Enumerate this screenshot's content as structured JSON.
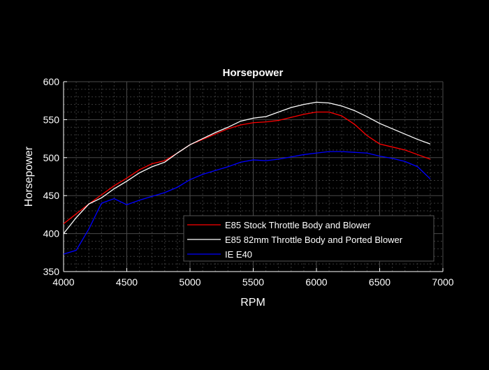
{
  "chart_data": {
    "type": "line",
    "title": "Horsepower",
    "xlabel": "RPM",
    "ylabel": "Horsepower",
    "xlim": [
      4000,
      7000
    ],
    "ylim": [
      350,
      600
    ],
    "xticks": [
      4000,
      4500,
      5000,
      5500,
      6000,
      6500,
      7000
    ],
    "yticks": [
      350,
      400,
      450,
      500,
      550,
      600
    ],
    "grid": true,
    "minor_grid": true,
    "legend_position": "bottom-right",
    "background": "#000000",
    "x": [
      4000,
      4100,
      4200,
      4300,
      4400,
      4500,
      4600,
      4700,
      4800,
      4900,
      5000,
      5100,
      5200,
      5300,
      5400,
      5500,
      5600,
      5700,
      5800,
      5900,
      6000,
      6100,
      6200,
      6300,
      6400,
      6500,
      6600,
      6700,
      6800,
      6900
    ],
    "series": [
      {
        "name": "E85 Stock Throttle Body and Blower",
        "color": "#ff0000",
        "values": [
          413,
          426,
          439,
          451,
          463,
          473,
          484,
          492,
          496,
          506,
          517,
          524,
          531,
          538,
          543,
          546,
          547,
          549,
          553,
          557,
          560,
          560,
          555,
          544,
          529,
          518,
          514,
          510,
          504,
          498
        ]
      },
      {
        "name": "E85 82mm Throttle Body and Ported Blower",
        "color": "#ffffff",
        "values": [
          400,
          421,
          439,
          447,
          459,
          469,
          480,
          488,
          494,
          506,
          517,
          525,
          533,
          540,
          548,
          552,
          554,
          560,
          566,
          570,
          573,
          572,
          568,
          562,
          554,
          545,
          538,
          531,
          524,
          518
        ]
      },
      {
        "name": "IE E40",
        "color": "#0000ff",
        "values": [
          373,
          378,
          406,
          440,
          446,
          438,
          444,
          449,
          454,
          461,
          471,
          478,
          483,
          488,
          494,
          497,
          496,
          498,
          501,
          504,
          506,
          508,
          508,
          507,
          506,
          502,
          499,
          495,
          488,
          472
        ]
      }
    ]
  }
}
